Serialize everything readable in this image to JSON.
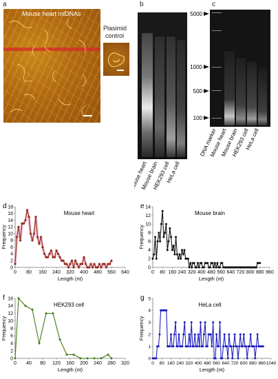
{
  "panel_a": {
    "label": "a",
    "title": "Mouse heart miDNAs",
    "plasmid_title_line1": "Plasimid",
    "plasmid_title_line2": "control"
  },
  "panel_b": {
    "label": "b",
    "lanes": [
      "Mouse heart",
      "Mouse brain",
      "HEK293 cell",
      "HeLa cell"
    ]
  },
  "panel_c": {
    "label": "c",
    "markers": [
      "5000",
      "1000",
      "500",
      "100"
    ],
    "lanes": [
      "DNA marker",
      "Mouse heart",
      "Mouse brain",
      "HEK293 cell",
      "HeLa cell"
    ]
  },
  "chart_data": [
    {
      "id": "d",
      "type": "line",
      "panel_label": "d",
      "title": "Mouse heart",
      "xlabel": "Length (nt)",
      "ylabel": "Frequency",
      "color": "#8b2b10",
      "highlight": "#f0a0c8",
      "xlim": [
        0,
        640
      ],
      "ylim": [
        0,
        18
      ],
      "xticks": [
        0,
        80,
        160,
        240,
        320,
        400,
        480,
        560,
        640
      ],
      "yticks": [
        0,
        2,
        4,
        6,
        8,
        10,
        12,
        14,
        16,
        18
      ],
      "x": [
        0,
        10,
        20,
        30,
        40,
        50,
        60,
        70,
        80,
        90,
        100,
        110,
        120,
        130,
        140,
        150,
        160,
        170,
        180,
        190,
        200,
        210,
        220,
        230,
        240,
        250,
        260,
        270,
        280,
        290,
        300,
        310,
        320,
        330,
        340,
        350,
        360,
        370,
        380,
        390,
        400,
        410,
        420,
        430,
        440,
        450,
        460,
        470,
        480,
        490,
        500,
        510,
        520,
        530,
        540,
        550,
        560
      ],
      "y": [
        1,
        9,
        12,
        8,
        13,
        13,
        14,
        17,
        15,
        10,
        8,
        10,
        15,
        9,
        7,
        9,
        6,
        4,
        3,
        3,
        4,
        5,
        3,
        3,
        5,
        4,
        3,
        2,
        2,
        1,
        1,
        0,
        1,
        2,
        0,
        2,
        1,
        0,
        1,
        1,
        3,
        1,
        0,
        0,
        1,
        0,
        1,
        0,
        0,
        1,
        0,
        1,
        1,
        0,
        1,
        1,
        2
      ]
    },
    {
      "id": "e",
      "type": "line",
      "panel_label": "e",
      "title": "Mouse brain",
      "xlabel": "Length (nt)",
      "ylabel": "Frequency",
      "color": "#111111",
      "xlim": [
        0,
        960
      ],
      "ylim": [
        0,
        14
      ],
      "xticks": [
        0,
        80,
        160,
        240,
        320,
        400,
        480,
        560,
        640,
        720,
        800,
        880,
        960
      ],
      "yticks": [
        0,
        2,
        4,
        6,
        8,
        10,
        12,
        14
      ],
      "x": [
        0,
        10,
        20,
        30,
        40,
        50,
        60,
        70,
        80,
        90,
        100,
        110,
        120,
        130,
        140,
        150,
        160,
        170,
        180,
        190,
        200,
        210,
        220,
        230,
        240,
        250,
        260,
        270,
        280,
        290,
        300,
        310,
        320,
        330,
        340,
        350,
        360,
        370,
        380,
        390,
        400,
        410,
        420,
        430,
        440,
        450,
        460,
        470,
        480,
        490,
        500,
        510,
        520,
        530,
        540,
        550,
        560,
        570,
        580,
        590,
        600,
        610,
        620,
        630,
        640,
        650,
        660,
        670,
        680,
        690,
        700,
        710,
        720,
        730,
        740,
        750,
        760,
        770,
        780,
        790,
        800,
        810,
        820,
        830,
        840,
        850,
        860,
        870,
        880
      ],
      "y": [
        2,
        3,
        7,
        2,
        6,
        8,
        6,
        10,
        13,
        7,
        8,
        10,
        4,
        6,
        9,
        7,
        4,
        5,
        3,
        7,
        3,
        2,
        3,
        2,
        4,
        3,
        4,
        2,
        2,
        2,
        0,
        1,
        0,
        1,
        1,
        0,
        0,
        1,
        0,
        1,
        1,
        0,
        0,
        1,
        1,
        1,
        0,
        0,
        1,
        1,
        0,
        1,
        0,
        1,
        0,
        0,
        1,
        1,
        0,
        0,
        0,
        0,
        0,
        0,
        0,
        0,
        0,
        0,
        0,
        0,
        0,
        0,
        0,
        0,
        0,
        0,
        0,
        0,
        0,
        0,
        0,
        0,
        0,
        0,
        0,
        0,
        1,
        1,
        1
      ]
    },
    {
      "id": "f",
      "type": "line",
      "panel_label": "f",
      "title": "HEK293 cell",
      "xlabel": "Length (nt)",
      "ylabel": "Frequency",
      "color": "#3f7a12",
      "xlim": [
        0,
        320
      ],
      "ylim": [
        0,
        16
      ],
      "xticks": [
        0,
        40,
        80,
        120,
        160,
        200,
        240,
        280,
        320
      ],
      "yticks": [
        0,
        2,
        4,
        6,
        8,
        10,
        12,
        14,
        16
      ],
      "x": [
        0,
        10,
        30,
        50,
        70,
        90,
        110,
        130,
        150,
        170,
        190,
        210,
        230,
        250,
        270,
        280
      ],
      "y": [
        0,
        16,
        14,
        13,
        4,
        12,
        12,
        5,
        1,
        1,
        0,
        0,
        0,
        0,
        1,
        0
      ]
    },
    {
      "id": "g",
      "type": "line",
      "panel_label": "g",
      "title": "HeLa cell",
      "xlabel": "Length (nt)",
      "ylabel": "Frequency",
      "color": "#1f1fc0",
      "xlim": [
        0,
        1040
      ],
      "ylim": [
        0,
        5
      ],
      "xticks": [
        0,
        80,
        160,
        240,
        320,
        400,
        480,
        560,
        640,
        720,
        800,
        880,
        960,
        1040
      ],
      "yticks": [
        0,
        1,
        2,
        3,
        4,
        5
      ],
      "x": [
        0,
        10,
        20,
        30,
        40,
        50,
        60,
        70,
        80,
        90,
        100,
        110,
        120,
        130,
        140,
        150,
        160,
        170,
        180,
        190,
        200,
        210,
        220,
        230,
        240,
        250,
        260,
        270,
        280,
        290,
        300,
        310,
        320,
        330,
        340,
        350,
        360,
        370,
        380,
        390,
        400,
        410,
        420,
        430,
        440,
        450,
        460,
        470,
        480,
        490,
        500,
        510,
        520,
        530,
        540,
        550,
        560,
        570,
        580,
        590,
        600,
        610,
        620,
        630,
        640,
        650,
        660,
        670,
        680,
        690,
        700,
        710,
        720,
        730,
        740,
        750,
        760,
        770,
        780,
        790,
        800,
        810,
        820,
        830,
        840,
        850,
        860,
        870,
        880,
        890,
        900,
        910,
        920,
        930,
        940,
        950,
        960,
        970
      ],
      "y": [
        0,
        0,
        0,
        0,
        1,
        1,
        2,
        4,
        4,
        4,
        4,
        4,
        4,
        1,
        1,
        1,
        2,
        1,
        1,
        2,
        3,
        1,
        1,
        2,
        1,
        1,
        1,
        2,
        3,
        1,
        1,
        1,
        2,
        1,
        3,
        1,
        1,
        2,
        1,
        1,
        2,
        1,
        3,
        1,
        1,
        2,
        3,
        1,
        1,
        2,
        2,
        2,
        1,
        3,
        0,
        0,
        2,
        1,
        1,
        3,
        0,
        0,
        1,
        2,
        1,
        1,
        0,
        2,
        1,
        1,
        0,
        1,
        2,
        1,
        1,
        0,
        1,
        2,
        1,
        1,
        2,
        1,
        1,
        0,
        1,
        1,
        2,
        1,
        1,
        1,
        0,
        1,
        2,
        1,
        1,
        1,
        1,
        1
      ]
    }
  ]
}
